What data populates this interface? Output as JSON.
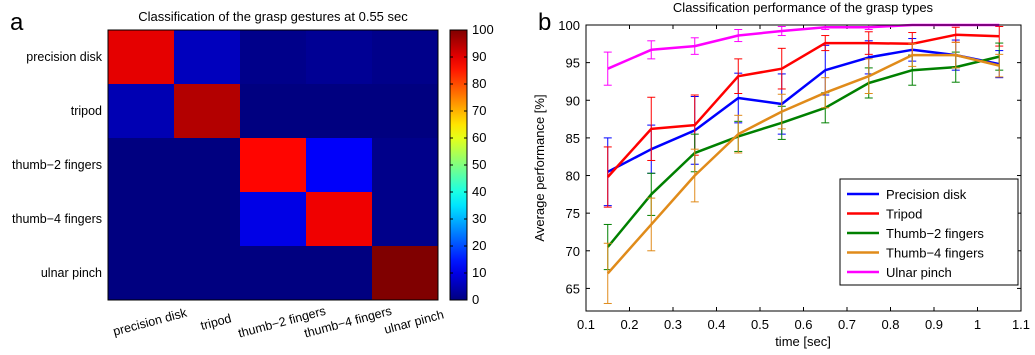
{
  "panels": {
    "a": "a",
    "b": "b"
  },
  "chart_data": [
    {
      "type": "heatmap",
      "title": "Classification of the grasp gestures at 0.55 sec",
      "rows": [
        "precision disk",
        "tripod",
        "thumb−2 fingers",
        "thumb−4 fingers",
        "ulnar pinch"
      ],
      "columns": [
        "precision disk",
        "tripod",
        "thumb−2 fingers",
        "thumb−4 fingers",
        "ulnar pinch"
      ],
      "values": [
        [
          90,
          6,
          1,
          2,
          1
        ],
        [
          5,
          95,
          0,
          0,
          0
        ],
        [
          0,
          0,
          87,
          12,
          1
        ],
        [
          0,
          0,
          10,
          89,
          1
        ],
        [
          0,
          0,
          0,
          0,
          100
        ]
      ],
      "colorbar": {
        "range": [
          0,
          100
        ],
        "ticks": [
          "0",
          "10",
          "20",
          "30",
          "40",
          "50",
          "60",
          "70",
          "80",
          "90",
          "100"
        ]
      }
    },
    {
      "type": "line",
      "title": "Classification performance of the grasp types",
      "xlabel": "time [sec]",
      "ylabel": "Average performance [%]",
      "xlim": [
        0.1,
        1.1
      ],
      "ylim": [
        62,
        100
      ],
      "xticks": [
        "0.1",
        "0.2",
        "0.3",
        "0.4",
        "0.5",
        "0.6",
        "0.7",
        "0.8",
        "0.9",
        "1",
        "1.1"
      ],
      "yticks": [
        "65",
        "70",
        "75",
        "80",
        "85",
        "90",
        "95",
        "100"
      ],
      "grid": false,
      "legend_position": "bottom-right",
      "x": [
        0.15,
        0.25,
        0.35,
        0.45,
        0.55,
        0.65,
        0.75,
        0.85,
        0.95,
        1.05
      ],
      "series": [
        {
          "name": "Precision disk",
          "color": "#0000ff",
          "values": [
            80.5,
            83.5,
            86,
            90.3,
            89.5,
            94,
            95.7,
            96.7,
            96,
            94.8
          ],
          "errors": [
            4.5,
            3.2,
            4.5,
            3.3,
            4,
            3.3,
            2.2,
            1.5,
            2,
            1.8
          ]
        },
        {
          "name": "Tripod",
          "color": "#ff0000",
          "values": [
            79.8,
            86.2,
            86.7,
            93.2,
            94.2,
            97.6,
            97.6,
            97.5,
            98.7,
            98.5
          ],
          "errors": [
            4,
            4.2,
            4,
            2.3,
            2.7,
            1,
            1.5,
            1.5,
            1,
            1.3
          ]
        },
        {
          "name": "Thumb−2 fingers",
          "color": "#008000",
          "values": [
            70.5,
            77.5,
            83,
            85.2,
            87,
            89,
            92.3,
            94,
            94.4,
            95.8
          ],
          "errors": [
            3,
            2.8,
            2.5,
            2,
            2.2,
            2,
            2,
            2,
            2,
            1.8
          ]
        },
        {
          "name": "Thumb−4 fingers",
          "color": "#e08b1a",
          "values": [
            67,
            73.5,
            80,
            85.5,
            88.5,
            91,
            93.2,
            96,
            96,
            94.6
          ],
          "errors": [
            4,
            3.5,
            3.5,
            2.5,
            2.3,
            2,
            2.3,
            1.5,
            1.7,
            1.5
          ]
        },
        {
          "name": "Ulnar pinch",
          "color": "#ff00ff",
          "values": [
            94.2,
            96.7,
            97.2,
            98.6,
            99.2,
            99.7,
            99.7,
            100,
            100,
            100
          ],
          "errors": [
            2.2,
            1.2,
            1.1,
            0.8,
            0.6,
            0.3,
            0.3,
            0,
            0,
            0
          ]
        }
      ]
    }
  ]
}
